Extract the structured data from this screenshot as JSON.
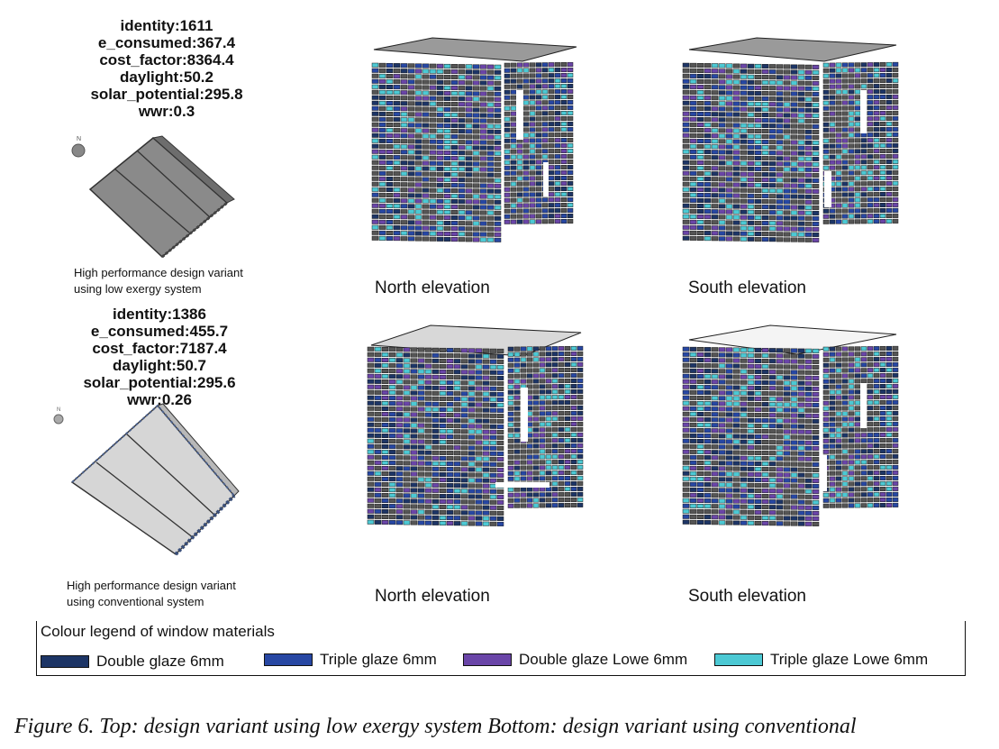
{
  "variants": [
    {
      "metrics": {
        "identity": "identity:1611",
        "e_consumed": "e_consumed:367.4",
        "cost_factor": "cost_factor:8364.4",
        "daylight": "daylight:50.2",
        "solar_potential": "solar_potential:295.8",
        "wwr": "wwr:0.3"
      },
      "caption_line1": "High performance design variant",
      "caption_line2": "using low exergy system",
      "north_label": "North elevation",
      "south_label": "South elevation",
      "compass_label": "N",
      "roof_color": "#8a8a8a"
    },
    {
      "metrics": {
        "identity": "identity:1386",
        "e_consumed": "e_consumed:455.7",
        "cost_factor": "cost_factor:7187.4",
        "daylight": "daylight:50.7",
        "solar_potential": "solar_potential:295.6",
        "wwr": "wwr:0.26"
      },
      "caption_line1": "High performance design variant",
      "caption_line2": "using conventional system",
      "north_label": "North elevation",
      "south_label": "South elevation",
      "compass_label": "N",
      "roof_color": "#d6d6d6"
    }
  ],
  "legend": {
    "title": "Colour legend of window materials",
    "items": [
      {
        "label": "Double glaze 6mm",
        "color": "#1d3566"
      },
      {
        "label": "Triple glaze 6mm",
        "color": "#2747a3"
      },
      {
        "label": "Double glaze Lowe 6mm",
        "color": "#6a45a8"
      },
      {
        "label": "Triple glaze Lowe 6mm",
        "color": "#4cc9d4"
      }
    ]
  },
  "figure_caption": "Figure 6.  Top: design variant using low exergy system Bottom: design variant using conventional"
}
